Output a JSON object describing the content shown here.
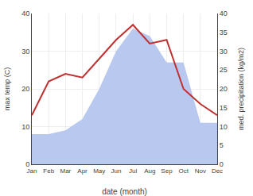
{
  "chart_data": {
    "type": "line",
    "categories": [
      "Jan",
      "Feb",
      "Mar",
      "Apr",
      "May",
      "Jun",
      "Jul",
      "Aug",
      "Sep",
      "Oct",
      "Nov",
      "Dec"
    ],
    "xlabel": "date (month)",
    "ylabel": "max temp (C)",
    "y2label": "med. precipitation (kg/m2)",
    "ylim": [
      0,
      40
    ],
    "yticks": [
      0,
      10,
      20,
      30,
      40
    ],
    "y2lim": [
      0,
      40
    ],
    "y2ticks": [
      0,
      5,
      10,
      15,
      20,
      25,
      30,
      35,
      40
    ],
    "grid": true,
    "series": [
      {
        "type": "area",
        "axis": "y2",
        "color": "#b8c8ee",
        "values": [
          8,
          8,
          9,
          12,
          20,
          30,
          36,
          34,
          27,
          27,
          11,
          11
        ]
      },
      {
        "type": "line",
        "color": "#c03030",
        "values": [
          13,
          22,
          24,
          23,
          28,
          33,
          37,
          32,
          33,
          20,
          16,
          13
        ]
      }
    ]
  }
}
